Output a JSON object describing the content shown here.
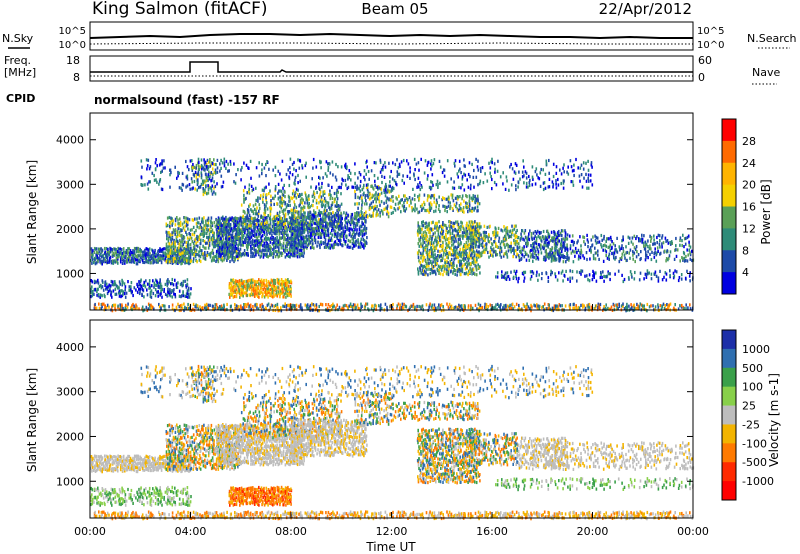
{
  "header": {
    "station": "King Salmon (fitACF)",
    "beam": "Beam 05",
    "date": "22/Apr/2012"
  },
  "top_panel": {
    "left_label": "N.Sky",
    "right_label": "N.Search",
    "tick_high": "10^5",
    "tick_low": "10^0"
  },
  "freq_panel": {
    "label_line1": "Freq.",
    "label_line2": "[MHz]",
    "ticks": [
      "18",
      "8"
    ],
    "right_label": "Nave",
    "right_ticks": [
      "60",
      "0"
    ]
  },
  "cpid": {
    "label": "CPID",
    "value": "normalsound (fast) -157 RF"
  },
  "chart_data": [
    {
      "type": "heatmap",
      "title": "",
      "quantity": "Power",
      "ylabel": "Slant Range [km]",
      "xlabel": "",
      "colorbar_label": "Power [dB]",
      "colorbar_ticks": [
        "28",
        "24",
        "20",
        "16",
        "12",
        "8",
        "4"
      ],
      "colorbar_colors": [
        "#ff0000",
        "#ff6a00",
        "#ffb400",
        "#f5d000",
        "#5aa057",
        "#2e8b78",
        "#1d4aa8",
        "#0000e0"
      ],
      "y_ticks": [
        "4000",
        "3000",
        "2000",
        "1000"
      ],
      "ylim": [
        180,
        4600
      ]
    },
    {
      "type": "heatmap",
      "title": "",
      "quantity": "Velocity",
      "ylabel": "Slant Range [km]",
      "xlabel": "Time UT",
      "colorbar_label": "Velocity [m s-1]",
      "colorbar_ticks": [
        "1000",
        "500",
        "100",
        "25",
        "-25",
        "-100",
        "-500",
        "-1000"
      ],
      "colorbar_colors": [
        "#1c2fa8",
        "#2f6fb0",
        "#3aa04a",
        "#88d04a",
        "#bdbdbd",
        "#f3b400",
        "#ff7a00",
        "#ff2a00",
        "#ff0000"
      ],
      "y_ticks": [
        "4000",
        "3000",
        "2000",
        "1000"
      ],
      "ylim": [
        180,
        4600
      ],
      "x_ticks": [
        "00:00",
        "04:00",
        "08:00",
        "12:00",
        "16:00",
        "20:00",
        "00:00"
      ]
    }
  ]
}
